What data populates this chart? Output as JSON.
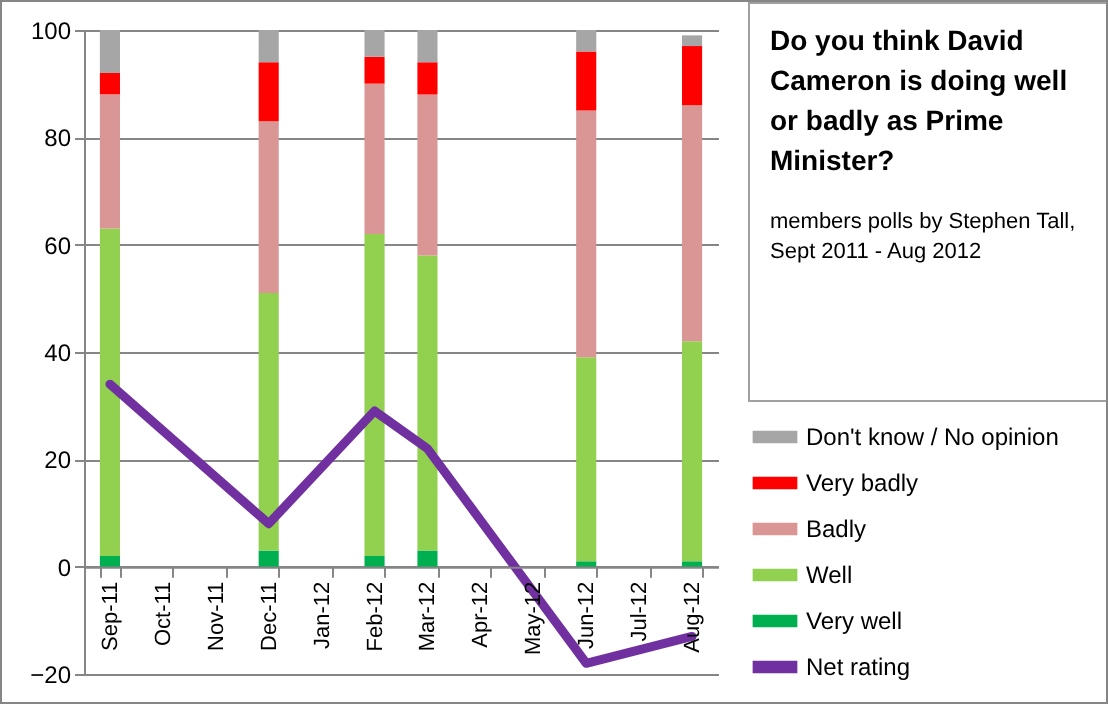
{
  "chart_data": {
    "type": "bar",
    "title": "Do you think David Cameron is doing well or badly as Prime Minister?",
    "subtitle": "members polls by Stephen Tall, Sept 2011 - Aug 2012",
    "categories": [
      "Sep-11",
      "Oct-11",
      "Nov-11",
      "Dec-11",
      "Jan-12",
      "Feb-12",
      "Mar-12",
      "Apr-12",
      "May-12",
      "Jun-12",
      "Jul-12",
      "Aug-12"
    ],
    "stacked": true,
    "ylim": [
      -20,
      100
    ],
    "yticks": [
      -20,
      0,
      20,
      40,
      60,
      80,
      100
    ],
    "grid": "y",
    "legend": "right",
    "series": [
      {
        "name": "Very well",
        "color": "#00b050",
        "values": [
          2,
          null,
          null,
          3,
          null,
          2,
          3,
          null,
          null,
          1,
          null,
          1
        ]
      },
      {
        "name": "Well",
        "color": "#92d050",
        "values": [
          61,
          null,
          null,
          48,
          null,
          60,
          55,
          null,
          null,
          38,
          null,
          41
        ]
      },
      {
        "name": "Badly",
        "color": "#d99694",
        "values": [
          25,
          null,
          null,
          32,
          null,
          28,
          30,
          null,
          null,
          46,
          null,
          44
        ]
      },
      {
        "name": "Very badly",
        "color": "#ff0000",
        "values": [
          4,
          null,
          null,
          11,
          null,
          5,
          6,
          null,
          null,
          11,
          null,
          11
        ]
      },
      {
        "name": "Don't know / No opinion",
        "color": "#a6a6a6",
        "values": [
          8,
          null,
          null,
          6,
          null,
          5,
          6,
          null,
          null,
          4,
          null,
          2
        ]
      },
      {
        "name": "Net rating",
        "type": "line",
        "color": "#7030a0",
        "values": [
          34,
          null,
          null,
          8,
          null,
          29,
          22,
          null,
          null,
          -18,
          null,
          -13
        ]
      }
    ]
  }
}
